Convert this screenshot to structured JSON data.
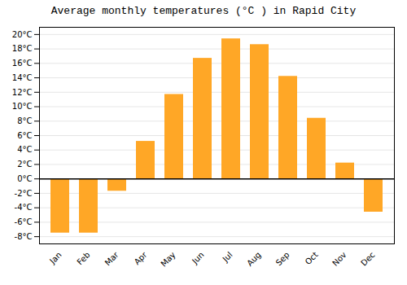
{
  "chart_data": {
    "type": "bar",
    "title": "Average monthly temperatures (°C ) in Rapid City",
    "categories": [
      "Jan",
      "Feb",
      "Mar",
      "Apr",
      "May",
      "Jun",
      "Jul",
      "Aug",
      "Sep",
      "Oct",
      "Nov",
      "Dec"
    ],
    "values": [
      -7.5,
      -7.5,
      -1.7,
      5.2,
      11.7,
      16.7,
      19.4,
      18.6,
      14.2,
      8.4,
      2.2,
      -4.6
    ],
    "color": "#FFA726",
    "ylim": [
      -9,
      21
    ],
    "yticks": [
      {
        "value": -8,
        "label": "-8°C"
      },
      {
        "value": -6,
        "label": "-6°C"
      },
      {
        "value": -4,
        "label": "-4°C"
      },
      {
        "value": -2,
        "label": "-2°C"
      },
      {
        "value": 0,
        "label": "0°C"
      },
      {
        "value": 2,
        "label": "2°C"
      },
      {
        "value": 4,
        "label": "4°C"
      },
      {
        "value": 6,
        "label": "6°C"
      },
      {
        "value": 8,
        "label": "8°C"
      },
      {
        "value": 10,
        "label": "10°C"
      },
      {
        "value": 12,
        "label": "12°C"
      },
      {
        "value": 14,
        "label": "14°C"
      },
      {
        "value": 16,
        "label": "16°C"
      },
      {
        "value": 18,
        "label": "18°C"
      },
      {
        "value": 20,
        "label": "20°C"
      }
    ],
    "grid": true
  }
}
